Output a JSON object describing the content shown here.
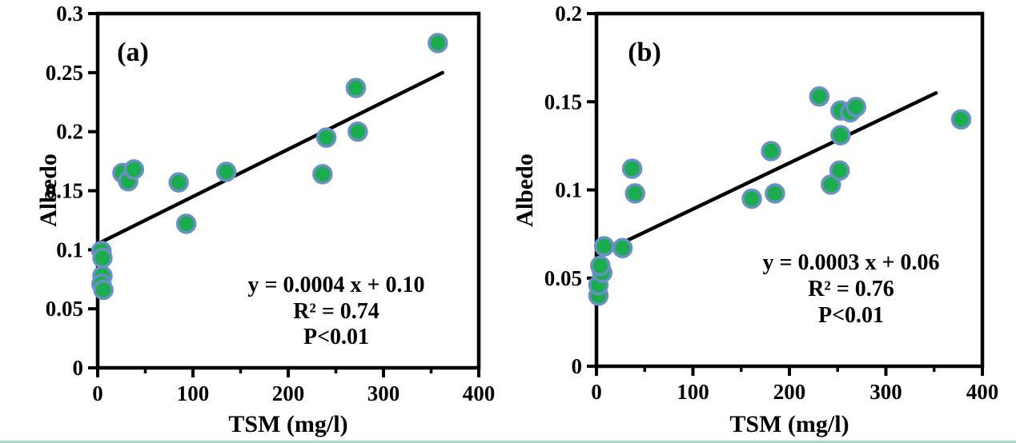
{
  "page": {
    "background": "#ffffff",
    "bottom_strip_color": "#a6dacb"
  },
  "chart_data": [
    {
      "type": "scatter",
      "panel_label": "(a)",
      "xlabel": "TSM (mg/l)",
      "ylabel": "Albedo",
      "xlim": [
        0,
        400
      ],
      "ylim": [
        0,
        0.3
      ],
      "x_ticks": [
        0,
        100,
        200,
        300,
        400
      ],
      "x_tick_labels": [
        "0",
        "100",
        "200",
        "300",
        "400"
      ],
      "x_minor_ticks": [
        50,
        150,
        250,
        350
      ],
      "y_ticks": [
        0,
        0.05,
        0.1,
        0.15,
        0.2,
        0.25,
        0.3
      ],
      "y_tick_labels": [
        "0",
        "0.05",
        "0.1",
        "0.15",
        "0.2",
        "0.25",
        "0.3"
      ],
      "grid": false,
      "points": [
        [
          4,
          0.099
        ],
        [
          5,
          0.093
        ],
        [
          5,
          0.078
        ],
        [
          4,
          0.071
        ],
        [
          6,
          0.066
        ],
        [
          26,
          0.165
        ],
        [
          32,
          0.158
        ],
        [
          38,
          0.168
        ],
        [
          85,
          0.157
        ],
        [
          93,
          0.122
        ],
        [
          135,
          0.166
        ],
        [
          236,
          0.164
        ],
        [
          240,
          0.195
        ],
        [
          271,
          0.237
        ],
        [
          273,
          0.2
        ],
        [
          357,
          0.275
        ]
      ],
      "trendline": {
        "x1": 0,
        "y1": 0.105,
        "x2": 362,
        "y2": 0.25
      },
      "equation": "y = 0.0004 x + 0.10",
      "r_squared": "R² = 0.74",
      "p_value": "P<0.01",
      "annotation": [
        "y = 0.0004 x + 0.10",
        "R² = 0.74",
        "P<0.01"
      ],
      "marker": {
        "fill": "#1CAC50",
        "stroke": "#6A90C5"
      }
    },
    {
      "type": "scatter",
      "panel_label": "(b)",
      "xlabel": "TSM (mg/l)",
      "ylabel": "Albedo",
      "xlim": [
        0,
        400
      ],
      "ylim": [
        0,
        0.2
      ],
      "x_ticks": [
        0,
        100,
        200,
        300,
        400
      ],
      "x_tick_labels": [
        "0",
        "100",
        "200",
        "300",
        "400"
      ],
      "x_minor_ticks": [
        50,
        150,
        250,
        350
      ],
      "y_ticks": [
        0,
        0.05,
        0.1,
        0.15,
        0.2
      ],
      "y_tick_labels": [
        "0",
        "0.05",
        "0.1",
        "0.15",
        "0.2"
      ],
      "grid": false,
      "points": [
        [
          2,
          0.04
        ],
        [
          2,
          0.046
        ],
        [
          6,
          0.053
        ],
        [
          4,
          0.057
        ],
        [
          8,
          0.068
        ],
        [
          27,
          0.067
        ],
        [
          37,
          0.112
        ],
        [
          40,
          0.098
        ],
        [
          161,
          0.095
        ],
        [
          181,
          0.122
        ],
        [
          185,
          0.098
        ],
        [
          231,
          0.153
        ],
        [
          243,
          0.103
        ],
        [
          252,
          0.111
        ],
        [
          253,
          0.145
        ],
        [
          253,
          0.131
        ],
        [
          263,
          0.144
        ],
        [
          269,
          0.147
        ],
        [
          378,
          0.14
        ]
      ],
      "trendline": {
        "x1": 0,
        "y1": 0.063,
        "x2": 352,
        "y2": 0.155
      },
      "equation": "y = 0.0003 x + 0.06",
      "r_squared": "R² = 0.76",
      "p_value": "P<0.01",
      "annotation": [
        "y = 0.0003 x + 0.06",
        "R² = 0.76",
        "P<0.01"
      ],
      "marker": {
        "fill": "#1CAC50",
        "stroke": "#6A90C5"
      }
    }
  ]
}
